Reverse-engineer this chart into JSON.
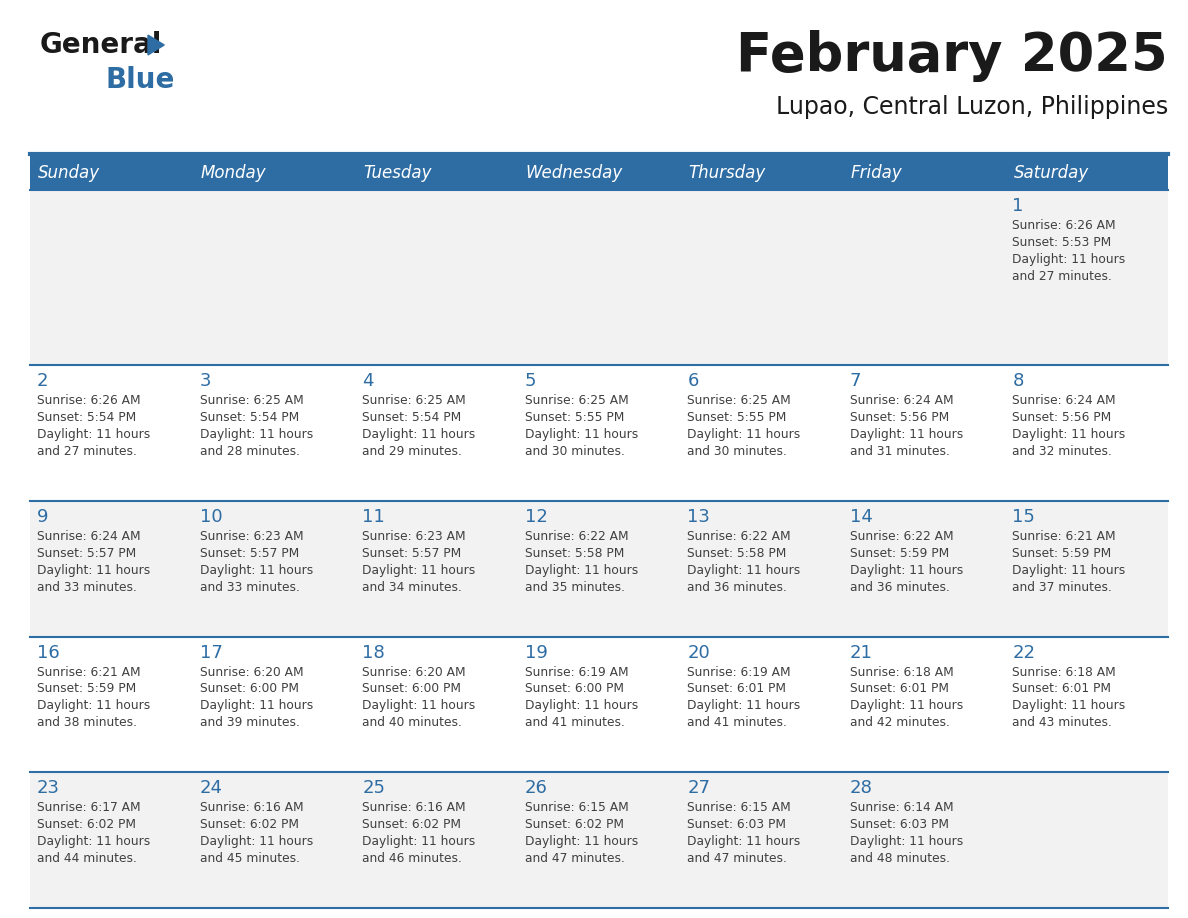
{
  "title": "February 2025",
  "subtitle": "Lupao, Central Luzon, Philippines",
  "header_bg_color": "#2e6da4",
  "header_text_color": "#ffffff",
  "day_names": [
    "Sunday",
    "Monday",
    "Tuesday",
    "Wednesday",
    "Thursday",
    "Friday",
    "Saturday"
  ],
  "bg_color": "#ffffff",
  "row0_bg_color": "#f2f2f2",
  "row_alt_color": "#f2f2f2",
  "cell_border_color": "#2e6da4",
  "day_num_color": "#2e6da4",
  "info_text_color": "#404040",
  "days": [
    {
      "day": 1,
      "col": 6,
      "row": 0,
      "sunrise": "6:26 AM",
      "sunset": "5:53 PM",
      "daylight_tail": "27 minutes."
    },
    {
      "day": 2,
      "col": 0,
      "row": 1,
      "sunrise": "6:26 AM",
      "sunset": "5:54 PM",
      "daylight_tail": "27 minutes."
    },
    {
      "day": 3,
      "col": 1,
      "row": 1,
      "sunrise": "6:25 AM",
      "sunset": "5:54 PM",
      "daylight_tail": "28 minutes."
    },
    {
      "day": 4,
      "col": 2,
      "row": 1,
      "sunrise": "6:25 AM",
      "sunset": "5:54 PM",
      "daylight_tail": "29 minutes."
    },
    {
      "day": 5,
      "col": 3,
      "row": 1,
      "sunrise": "6:25 AM",
      "sunset": "5:55 PM",
      "daylight_tail": "30 minutes."
    },
    {
      "day": 6,
      "col": 4,
      "row": 1,
      "sunrise": "6:25 AM",
      "sunset": "5:55 PM",
      "daylight_tail": "30 minutes."
    },
    {
      "day": 7,
      "col": 5,
      "row": 1,
      "sunrise": "6:24 AM",
      "sunset": "5:56 PM",
      "daylight_tail": "31 minutes."
    },
    {
      "day": 8,
      "col": 6,
      "row": 1,
      "sunrise": "6:24 AM",
      "sunset": "5:56 PM",
      "daylight_tail": "32 minutes."
    },
    {
      "day": 9,
      "col": 0,
      "row": 2,
      "sunrise": "6:24 AM",
      "sunset": "5:57 PM",
      "daylight_tail": "33 minutes."
    },
    {
      "day": 10,
      "col": 1,
      "row": 2,
      "sunrise": "6:23 AM",
      "sunset": "5:57 PM",
      "daylight_tail": "33 minutes."
    },
    {
      "day": 11,
      "col": 2,
      "row": 2,
      "sunrise": "6:23 AM",
      "sunset": "5:57 PM",
      "daylight_tail": "34 minutes."
    },
    {
      "day": 12,
      "col": 3,
      "row": 2,
      "sunrise": "6:22 AM",
      "sunset": "5:58 PM",
      "daylight_tail": "35 minutes."
    },
    {
      "day": 13,
      "col": 4,
      "row": 2,
      "sunrise": "6:22 AM",
      "sunset": "5:58 PM",
      "daylight_tail": "36 minutes."
    },
    {
      "day": 14,
      "col": 5,
      "row": 2,
      "sunrise": "6:22 AM",
      "sunset": "5:59 PM",
      "daylight_tail": "36 minutes."
    },
    {
      "day": 15,
      "col": 6,
      "row": 2,
      "sunrise": "6:21 AM",
      "sunset": "5:59 PM",
      "daylight_tail": "37 minutes."
    },
    {
      "day": 16,
      "col": 0,
      "row": 3,
      "sunrise": "6:21 AM",
      "sunset": "5:59 PM",
      "daylight_tail": "38 minutes."
    },
    {
      "day": 17,
      "col": 1,
      "row": 3,
      "sunrise": "6:20 AM",
      "sunset": "6:00 PM",
      "daylight_tail": "39 minutes."
    },
    {
      "day": 18,
      "col": 2,
      "row": 3,
      "sunrise": "6:20 AM",
      "sunset": "6:00 PM",
      "daylight_tail": "40 minutes."
    },
    {
      "day": 19,
      "col": 3,
      "row": 3,
      "sunrise": "6:19 AM",
      "sunset": "6:00 PM",
      "daylight_tail": "41 minutes."
    },
    {
      "day": 20,
      "col": 4,
      "row": 3,
      "sunrise": "6:19 AM",
      "sunset": "6:01 PM",
      "daylight_tail": "41 minutes."
    },
    {
      "day": 21,
      "col": 5,
      "row": 3,
      "sunrise": "6:18 AM",
      "sunset": "6:01 PM",
      "daylight_tail": "42 minutes."
    },
    {
      "day": 22,
      "col": 6,
      "row": 3,
      "sunrise": "6:18 AM",
      "sunset": "6:01 PM",
      "daylight_tail": "43 minutes."
    },
    {
      "day": 23,
      "col": 0,
      "row": 4,
      "sunrise": "6:17 AM",
      "sunset": "6:02 PM",
      "daylight_tail": "44 minutes."
    },
    {
      "day": 24,
      "col": 1,
      "row": 4,
      "sunrise": "6:16 AM",
      "sunset": "6:02 PM",
      "daylight_tail": "45 minutes."
    },
    {
      "day": 25,
      "col": 2,
      "row": 4,
      "sunrise": "6:16 AM",
      "sunset": "6:02 PM",
      "daylight_tail": "46 minutes."
    },
    {
      "day": 26,
      "col": 3,
      "row": 4,
      "sunrise": "6:15 AM",
      "sunset": "6:02 PM",
      "daylight_tail": "47 minutes."
    },
    {
      "day": 27,
      "col": 4,
      "row": 4,
      "sunrise": "6:15 AM",
      "sunset": "6:03 PM",
      "daylight_tail": "47 minutes."
    },
    {
      "day": 28,
      "col": 5,
      "row": 4,
      "sunrise": "6:14 AM",
      "sunset": "6:03 PM",
      "daylight_tail": "48 minutes."
    }
  ],
  "num_rows": 5,
  "num_cols": 7
}
